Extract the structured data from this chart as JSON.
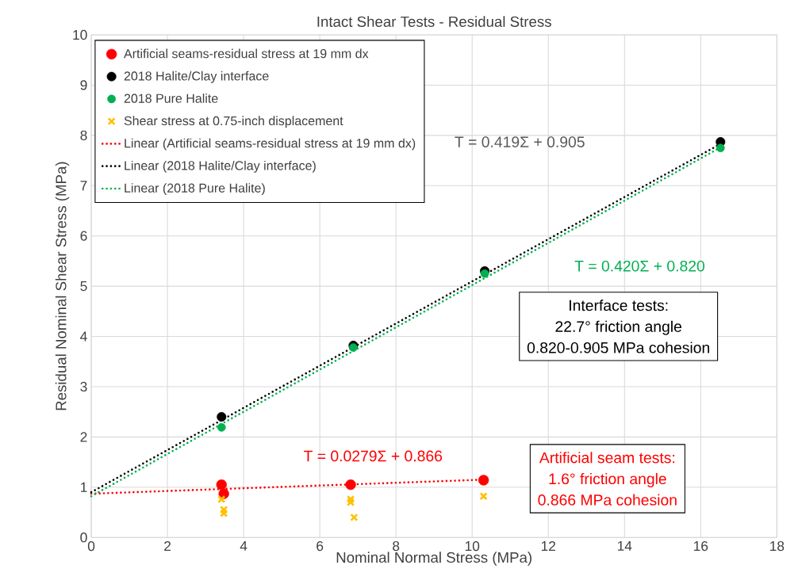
{
  "chart_data": {
    "type": "scatter",
    "title": "Intact Shear Tests - Residual Stress",
    "xlabel": "Nominal Normal Stress (MPa)",
    "ylabel": "Residual Nominal Shear Stress (MPa)",
    "xlim": [
      0,
      18
    ],
    "ylim": [
      0,
      10
    ],
    "xticks": [
      0,
      2,
      4,
      6,
      8,
      10,
      12,
      14,
      16,
      18
    ],
    "yticks": [
      0,
      1,
      2,
      3,
      4,
      5,
      6,
      7,
      8,
      9,
      10
    ],
    "grid": true,
    "legend": "top left",
    "series": [
      {
        "name": "Artificial seams-residual stress at 19 mm dx",
        "marker": "circle",
        "color": "#ff0000",
        "x": [
          3.42,
          3.48,
          6.81,
          10.3
        ],
        "values": [
          1.05,
          0.87,
          1.05,
          1.14
        ]
      },
      {
        "name": "2018 Halite/Clay interface",
        "marker": "circle",
        "color": "#000000",
        "x": [
          3.42,
          6.88,
          10.33,
          16.52
        ],
        "values": [
          2.4,
          3.82,
          5.3,
          7.87
        ]
      },
      {
        "name": "2018 Pure Halite",
        "marker": "circle",
        "color": "#00b050",
        "x": [
          3.42,
          6.88,
          10.33,
          16.52
        ],
        "values": [
          2.19,
          3.78,
          5.25,
          7.75
        ]
      },
      {
        "name": "Shear stress at 0.75-inch displacement",
        "marker": "cross",
        "color": "#ffc000",
        "x": [
          3.42,
          3.48,
          3.48,
          6.81,
          6.81,
          6.9,
          10.3
        ],
        "values": [
          0.76,
          0.55,
          0.48,
          0.76,
          0.7,
          0.4,
          0.82
        ]
      },
      {
        "name": "Linear (Artificial seams-residual stress at 19 mm dx)",
        "type": "line",
        "line_style": "dotted",
        "marker": "none",
        "color": "#ff0000",
        "x": [
          0,
          10.3
        ],
        "values": [
          0.87,
          1.15
        ]
      },
      {
        "name": "Linear (2018 Halite/Clay interface)",
        "type": "line",
        "line_style": "dotted",
        "marker": "none",
        "color": "#000000",
        "x": [
          0,
          16.52
        ],
        "values": [
          0.9,
          7.83
        ]
      },
      {
        "name": "Linear (2018 Pure Halite)",
        "type": "line",
        "line_style": "dotted",
        "marker": "none",
        "color": "#00b050",
        "x": [
          0,
          16.52
        ],
        "values": [
          0.82,
          7.76
        ]
      }
    ],
    "annotations": [
      "T = 0.419Σ + 0.905",
      "T = 0.420Σ + 0.820",
      "T = 0.0279Σ + 0.866",
      "Interface tests:",
      "22.7° friction angle",
      "0.820-0.905 MPa cohesion",
      "Artificial seam tests:",
      "1.6° friction angle",
      "0.866 MPa cohesion"
    ]
  }
}
